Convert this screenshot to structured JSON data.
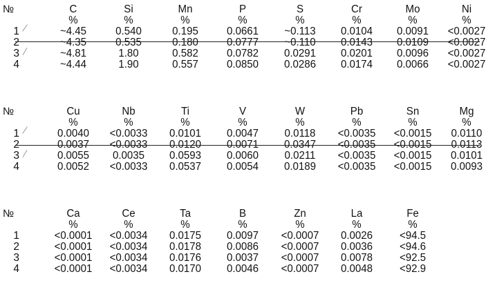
{
  "tables": [
    {
      "no_label": "№",
      "headers": [
        "C",
        "Si",
        "Mn",
        "P",
        "S",
        "Cr",
        "Mo",
        "Ni"
      ],
      "units": [
        "%",
        "%",
        "%",
        "%",
        "%",
        "%",
        "%",
        "%"
      ],
      "row_numbers": [
        "1",
        "2",
        "3",
        "4"
      ],
      "rows": [
        [
          "~4.45",
          "0.540",
          "0.195",
          "0.0661",
          "~0.113",
          "0.0104",
          "0.0091",
          "<0.0027"
        ],
        [
          "~4.35",
          "0.535",
          "0.180",
          "0.0777",
          "~0.110",
          "0.0143",
          "0.0109",
          "<0.0027"
        ],
        [
          "~4.81",
          "1.80",
          "0.582",
          "0.0782",
          "0.0291",
          "0.0201",
          "0.0096",
          "<0.0027"
        ],
        [
          "~4.44",
          "1.90",
          "0.557",
          "0.0850",
          "0.0286",
          "0.0174",
          "0.0066",
          "<0.0027"
        ]
      ]
    },
    {
      "no_label": "№",
      "headers": [
        "Cu",
        "Nb",
        "Ti",
        "V",
        "W",
        "Pb",
        "Sn",
        "Mg"
      ],
      "units": [
        "%",
        "%",
        "%",
        "%",
        "%",
        "%",
        "%",
        "%"
      ],
      "row_numbers": [
        "1",
        "2",
        "3",
        "4"
      ],
      "rows": [
        [
          "0.0040",
          "<0.0033",
          "0.0101",
          "0.0047",
          "0.0118",
          "<0.0035",
          "<0.0015",
          "0.0110"
        ],
        [
          "0.0037",
          "<0.0033",
          "0.0120",
          "0.0071",
          "0.0347",
          "<0.0035",
          "<0.0015",
          "0.0113"
        ],
        [
          "0.0055",
          "0.0035",
          "0.0593",
          "0.0060",
          "0.0211",
          "<0.0035",
          "<0.0015",
          "0.0101"
        ],
        [
          "0.0052",
          "<0.0033",
          "0.0537",
          "0.0054",
          "0.0189",
          "<0.0035",
          "<0.0015",
          "0.0093"
        ]
      ]
    },
    {
      "no_label": "№",
      "headers": [
        "Ca",
        "Ce",
        "Ta",
        "B",
        "Zn",
        "La",
        "Fe"
      ],
      "units": [
        "%",
        "%",
        "%",
        "%",
        "%",
        "%",
        "%"
      ],
      "row_numbers": [
        "1",
        "2",
        "3",
        "4"
      ],
      "rows": [
        [
          "<0.0001",
          "<0.0034",
          "0.0175",
          "0.0097",
          "<0.0007",
          "0.0026",
          "<94.5"
        ],
        [
          "<0.0001",
          "<0.0034",
          "0.0178",
          "0.0086",
          "<0.0007",
          "0.0036",
          "<94.6"
        ],
        [
          "<0.0001",
          "<0.0034",
          "0.0176",
          "0.0037",
          "<0.0007",
          "0.0078",
          "<92.5"
        ],
        [
          "<0.0001",
          "<0.0034",
          "0.0170",
          "0.0046",
          "<0.0007",
          "0.0048",
          "<92.9"
        ]
      ]
    }
  ]
}
